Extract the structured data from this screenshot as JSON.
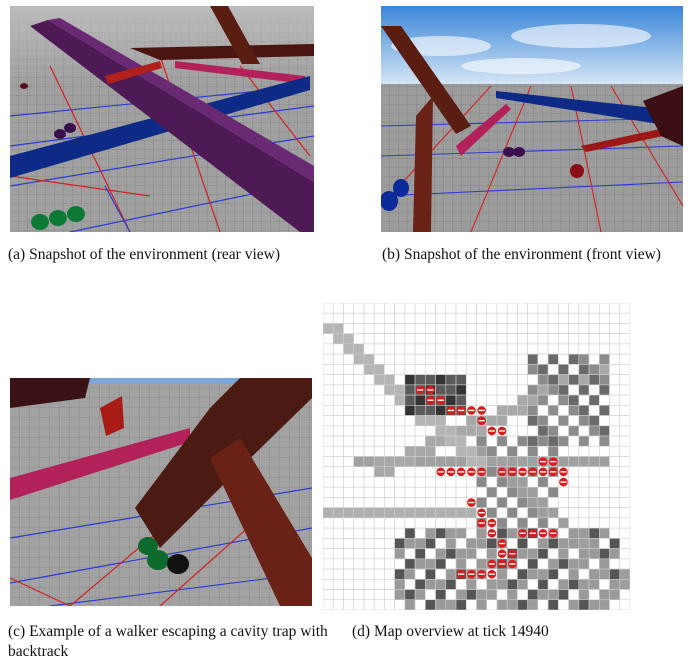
{
  "figure": {
    "panels": [
      {
        "id": "a",
        "caption": "(a) Snapshot of the environment (rear view)"
      },
      {
        "id": "b",
        "caption": "(b) Snapshot of the environment (front view)"
      },
      {
        "id": "c",
        "caption": "(c) Example of a walker escaping a cavity trap with backtrack"
      },
      {
        "id": "d",
        "caption": "(d) Map overview at tick 14940"
      }
    ]
  },
  "colors": {
    "floor": "#9a9a9a",
    "grid_blue": "#2b3bd6",
    "grid_red": "#d42020",
    "sky_top": "#3a86d8",
    "sky_bottom": "#d8e8f6",
    "wall_purple": "#4e1a55",
    "wall_blue": "#0c2a86",
    "wall_magenta": "#b3215a",
    "wall_brown": "#5a1d12",
    "walker_green": "#0c7a34",
    "walker_purple": "#3a0d4c",
    "walker_red": "#8a0e18",
    "map_trail": "#d81b1b"
  }
}
